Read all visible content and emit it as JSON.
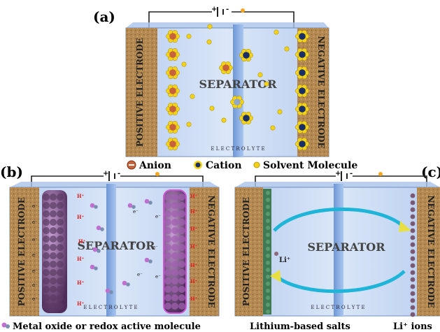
{
  "panel_a": {
    "label": "(a)",
    "positive_electrode": "POSITIVE ELECTRODE",
    "negative_electrode": "NEGATIVE ELECTRODE",
    "separator": "SEPARATOR",
    "electrolyte": "E L E C T R O L Y T E",
    "battery_plus": "+",
    "battery_minus": "-"
  },
  "legend_a": {
    "anion": "Anion",
    "cation": "Cation",
    "solvent": "Solvent Molecule"
  },
  "panel_b": {
    "label": "(b)",
    "positive_electrode": "POSITIVE ELECTRODE",
    "negative_electrode": "NEGATIVE ELECTRODE",
    "separator": "SEPARATOR",
    "electrolyte": "E L E C T R O L Y T E",
    "proton": "H⁺",
    "electron": "e⁻",
    "battery_plus": "+",
    "battery_minus": "-"
  },
  "legend_b": {
    "metal_oxide": "Metal oxide or redox active molecule"
  },
  "panel_c": {
    "label": "(c)",
    "positive_electrode": "POSITIVE ELECTRODE",
    "negative_electrode": "NEGATIVE ELECTRODE",
    "separator": "SEPARATOR",
    "electrolyte": "E L E C T R O L Y T E",
    "li_ion": "Li⁺",
    "battery_plus": "+",
    "battery_minus": "-"
  },
  "legend_c": {
    "lithium_salts": "Lithium-based salts",
    "li_ions": "Li⁺ ions"
  },
  "colors": {
    "electrode": "#b48a52",
    "electrolyte": "#c9daf3",
    "separator": "#8fb4e6",
    "anion": "#c8623c",
    "cation": "#1a2f66",
    "solvent": "#f2d21b",
    "proton": "#e02020",
    "metal_oxide": "#8e5a9a",
    "lithium_salt": "#3f7a55",
    "arrow": "#1fb5d8"
  }
}
